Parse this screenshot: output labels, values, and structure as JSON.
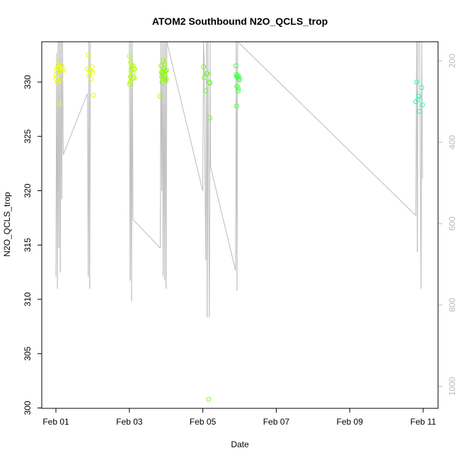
{
  "chart_data": {
    "type": "scatter",
    "title": "ATOM2 Southbound N2O_QCLS_trop",
    "xlabel": "Date",
    "ylabel": "N2O_QCLS_trop",
    "x_ticks": [
      "Feb 01",
      "Feb 03",
      "Feb 05",
      "Feb 07",
      "Feb 09",
      "Feb 11"
    ],
    "y_ticks": [
      300,
      305,
      310,
      315,
      320,
      325,
      330
    ],
    "y2_ticks": [
      200,
      400,
      600,
      800,
      1000
    ],
    "xlim": [
      "2017-02-00.9",
      "2017-02-11.3"
    ],
    "ylim": [
      299.5,
      333.4
    ],
    "y2lim": [
      150,
      1060
    ],
    "y2_reversed": true,
    "grid": false,
    "legend": "none",
    "points": [
      {
        "day": 1.0,
        "value": 330.6,
        "color": "#f0ff00"
      },
      {
        "day": 1.01,
        "value": 330.3,
        "color": "#f0ff00"
      },
      {
        "day": 1.02,
        "value": 331.0,
        "color": "#f0ff00"
      },
      {
        "day": 1.03,
        "value": 331.3,
        "color": "#f0ff00"
      },
      {
        "day": 1.04,
        "value": 330.0,
        "color": "#f0ff00"
      },
      {
        "day": 1.06,
        "value": 331.6,
        "color": "#f0ff00"
      },
      {
        "day": 1.08,
        "value": 331.4,
        "color": "#f0ff00"
      },
      {
        "day": 1.1,
        "value": 331.0,
        "color": "#f0ff00"
      },
      {
        "day": 1.12,
        "value": 330.2,
        "color": "#f0ff00"
      },
      {
        "day": 1.14,
        "value": 331.2,
        "color": "#f0ff00"
      },
      {
        "day": 1.16,
        "value": 331.5,
        "color": "#f0ff00"
      },
      {
        "day": 1.18,
        "value": 331.0,
        "color": "#f0ff00"
      },
      {
        "day": 1.2,
        "value": 331.2,
        "color": "#f0ff00"
      },
      {
        "day": 1.09,
        "value": 328.0,
        "color": "#f0ff00"
      },
      {
        "day": 1.86,
        "value": 331.2,
        "color": "#e6ff00"
      },
      {
        "day": 1.88,
        "value": 332.5,
        "color": "#e6ff00"
      },
      {
        "day": 1.9,
        "value": 330.6,
        "color": "#e6ff00"
      },
      {
        "day": 1.92,
        "value": 331.1,
        "color": "#e6ff00"
      },
      {
        "day": 1.94,
        "value": 331.0,
        "color": "#e6ff00"
      },
      {
        "day": 1.96,
        "value": 330.3,
        "color": "#e6ff00"
      },
      {
        "day": 1.98,
        "value": 331.4,
        "color": "#e6ff00"
      },
      {
        "day": 2.0,
        "value": 330.9,
        "color": "#e6ff00"
      },
      {
        "day": 2.02,
        "value": 328.8,
        "color": "#e6ff00"
      },
      {
        "day": 3.0,
        "value": 332.4,
        "color": "#b8ff00"
      },
      {
        "day": 3.01,
        "value": 329.8,
        "color": "#b8ff00"
      },
      {
        "day": 3.02,
        "value": 330.0,
        "color": "#b8ff00"
      },
      {
        "day": 3.03,
        "value": 330.5,
        "color": "#b8ff00"
      },
      {
        "day": 3.04,
        "value": 331.8,
        "color": "#b8ff00"
      },
      {
        "day": 3.05,
        "value": 331.1,
        "color": "#b8ff00"
      },
      {
        "day": 3.06,
        "value": 331.5,
        "color": "#b8ff00"
      },
      {
        "day": 3.07,
        "value": 331.3,
        "color": "#b8ff00"
      },
      {
        "day": 3.08,
        "value": 330.3,
        "color": "#b8ff00"
      },
      {
        "day": 3.09,
        "value": 330.8,
        "color": "#b8ff00"
      },
      {
        "day": 3.1,
        "value": 331.5,
        "color": "#b8ff00"
      },
      {
        "day": 3.11,
        "value": 330.4,
        "color": "#b8ff00"
      },
      {
        "day": 3.12,
        "value": 331.2,
        "color": "#b8ff00"
      },
      {
        "day": 3.13,
        "value": 330.4,
        "color": "#b8ff00"
      },
      {
        "day": 3.14,
        "value": 331.2,
        "color": "#b8ff00"
      },
      {
        "day": 3.84,
        "value": 328.7,
        "color": "#8cff00"
      },
      {
        "day": 3.86,
        "value": 331.5,
        "color": "#8cff00"
      },
      {
        "day": 3.87,
        "value": 330.9,
        "color": "#8cff00"
      },
      {
        "day": 3.88,
        "value": 330.5,
        "color": "#8cff00"
      },
      {
        "day": 3.89,
        "value": 330.0,
        "color": "#8cff00"
      },
      {
        "day": 3.9,
        "value": 330.9,
        "color": "#8cff00"
      },
      {
        "day": 3.91,
        "value": 332.0,
        "color": "#8cff00"
      },
      {
        "day": 3.92,
        "value": 331.0,
        "color": "#8cff00"
      },
      {
        "day": 3.93,
        "value": 330.5,
        "color": "#8cff00"
      },
      {
        "day": 3.94,
        "value": 331.2,
        "color": "#8cff00"
      },
      {
        "day": 3.95,
        "value": 330.3,
        "color": "#8cff00"
      },
      {
        "day": 3.96,
        "value": 331.6,
        "color": "#8cff00"
      },
      {
        "day": 3.97,
        "value": 330.6,
        "color": "#8cff00"
      },
      {
        "day": 3.98,
        "value": 331.0,
        "color": "#8cff00"
      },
      {
        "day": 3.99,
        "value": 330.1,
        "color": "#8cff00"
      },
      {
        "day": 4.0,
        "value": 330.3,
        "color": "#8cff00"
      },
      {
        "day": 4.01,
        "value": 331.1,
        "color": "#8cff00"
      },
      {
        "day": 5.02,
        "value": 331.4,
        "color": "#66ff22"
      },
      {
        "day": 5.04,
        "value": 330.4,
        "color": "#66ff22"
      },
      {
        "day": 5.08,
        "value": 329.2,
        "color": "#66ff22"
      },
      {
        "day": 5.1,
        "value": 330.8,
        "color": "#66ff22"
      },
      {
        "day": 5.12,
        "value": 330.8,
        "color": "#66ff22"
      },
      {
        "day": 5.18,
        "value": 330.0,
        "color": "#66ff22"
      },
      {
        "day": 5.19,
        "value": 329.9,
        "color": "#66ff22"
      },
      {
        "day": 5.19,
        "value": 326.7,
        "color": "#66ff22"
      },
      {
        "day": 5.16,
        "value": 300.8,
        "color": "#66ff22"
      },
      {
        "day": 5.9,
        "value": 331.5,
        "color": "#44ff44"
      },
      {
        "day": 5.91,
        "value": 330.7,
        "color": "#44ff44"
      },
      {
        "day": 5.92,
        "value": 330.5,
        "color": "#44ff44"
      },
      {
        "day": 5.93,
        "value": 329.6,
        "color": "#44ff44"
      },
      {
        "day": 5.94,
        "value": 330.6,
        "color": "#44ff44"
      },
      {
        "day": 5.95,
        "value": 330.4,
        "color": "#44ff44"
      },
      {
        "day": 5.96,
        "value": 329.2,
        "color": "#44ff44"
      },
      {
        "day": 5.97,
        "value": 329.4,
        "color": "#44ff44"
      },
      {
        "day": 5.98,
        "value": 330.3,
        "color": "#44ff44"
      },
      {
        "day": 5.99,
        "value": 330.5,
        "color": "#44ff44"
      },
      {
        "day": 6.0,
        "value": 330.2,
        "color": "#44ff44"
      },
      {
        "day": 5.92,
        "value": 327.8,
        "color": "#44ff44"
      },
      {
        "day": 10.8,
        "value": 328.2,
        "color": "#22ffaa"
      },
      {
        "day": 10.82,
        "value": 330.0,
        "color": "#22ffaa"
      },
      {
        "day": 10.86,
        "value": 328.4,
        "color": "#22ffaa"
      },
      {
        "day": 10.88,
        "value": 328.7,
        "color": "#22ffaa"
      },
      {
        "day": 10.9,
        "value": 327.3,
        "color": "#22ffaa"
      },
      {
        "day": 10.96,
        "value": 329.5,
        "color": "#22ffaa"
      },
      {
        "day": 10.98,
        "value": 327.9,
        "color": "#22ffaa"
      }
    ],
    "altitude_track": {
      "axis": "right",
      "color": "#bbbbbb",
      "points": [
        [
          1.0,
          730
        ],
        [
          1.02,
          180
        ],
        [
          1.04,
          760
        ],
        [
          1.06,
          150
        ],
        [
          1.08,
          660
        ],
        [
          1.1,
          150
        ],
        [
          1.12,
          720
        ],
        [
          1.14,
          150
        ],
        [
          1.16,
          540
        ],
        [
          1.18,
          150
        ],
        [
          1.2,
          430
        ],
        [
          1.86,
          280
        ],
        [
          1.88,
          730
        ],
        [
          1.9,
          150
        ],
        [
          1.92,
          760
        ],
        [
          1.94,
          150
        ],
        [
          2.0,
          150
        ],
        [
          2.5,
          150
        ],
        [
          3.0,
          150
        ],
        [
          3.02,
          740
        ],
        [
          3.04,
          150
        ],
        [
          3.06,
          790
        ],
        [
          3.08,
          150
        ],
        [
          3.1,
          590
        ],
        [
          3.84,
          660
        ],
        [
          3.86,
          150
        ],
        [
          3.88,
          520
        ],
        [
          3.9,
          150
        ],
        [
          3.92,
          730
        ],
        [
          3.94,
          150
        ],
        [
          3.96,
          740
        ],
        [
          3.98,
          150
        ],
        [
          4.0,
          760
        ],
        [
          4.02,
          150
        ],
        [
          5.0,
          520
        ],
        [
          5.02,
          150
        ],
        [
          5.04,
          210
        ],
        [
          5.06,
          490
        ],
        [
          5.08,
          690
        ],
        [
          5.1,
          150
        ],
        [
          5.12,
          830
        ],
        [
          5.14,
          150
        ],
        [
          5.16,
          550
        ],
        [
          5.18,
          830
        ],
        [
          5.2,
          150
        ],
        [
          5.21,
          460
        ],
        [
          5.89,
          715
        ],
        [
          5.91,
          150
        ],
        [
          5.93,
          765
        ],
        [
          5.95,
          150
        ],
        [
          10.8,
          580
        ],
        [
          10.82,
          150
        ],
        [
          10.84,
          670
        ],
        [
          10.86,
          150
        ],
        [
          10.9,
          150
        ],
        [
          10.94,
          760
        ],
        [
          10.96,
          150
        ],
        [
          10.98,
          490
        ]
      ]
    }
  }
}
